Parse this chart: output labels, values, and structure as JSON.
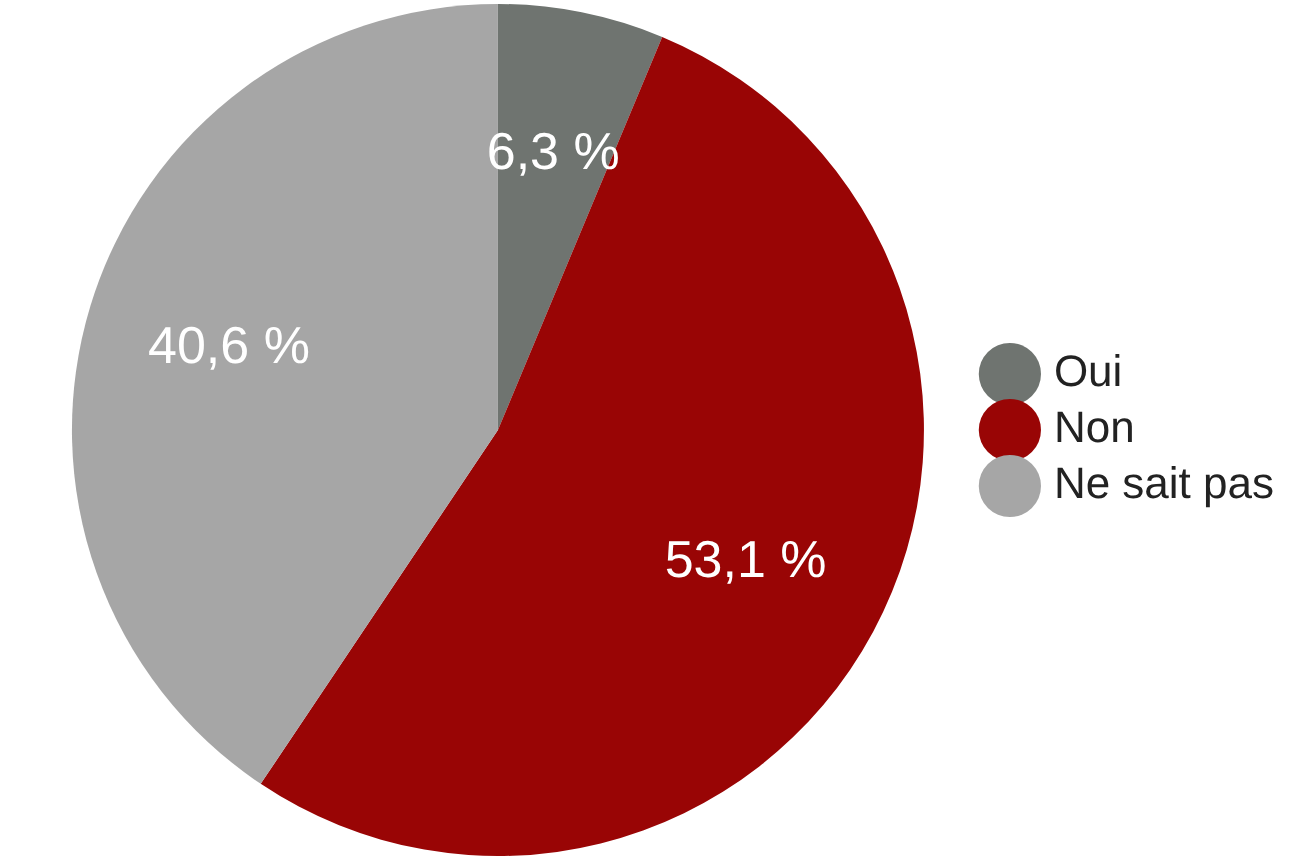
{
  "chart_data": {
    "type": "pie",
    "categories": [
      "Oui",
      "Non",
      "Ne sait pas"
    ],
    "values": [
      6.3,
      53.1,
      40.6
    ],
    "value_labels": [
      "6,3 %",
      "53,1 %",
      "40,6 %"
    ],
    "colors": [
      "#6f7470",
      "#990505",
      "#a6a6a6"
    ],
    "legend": "right"
  }
}
